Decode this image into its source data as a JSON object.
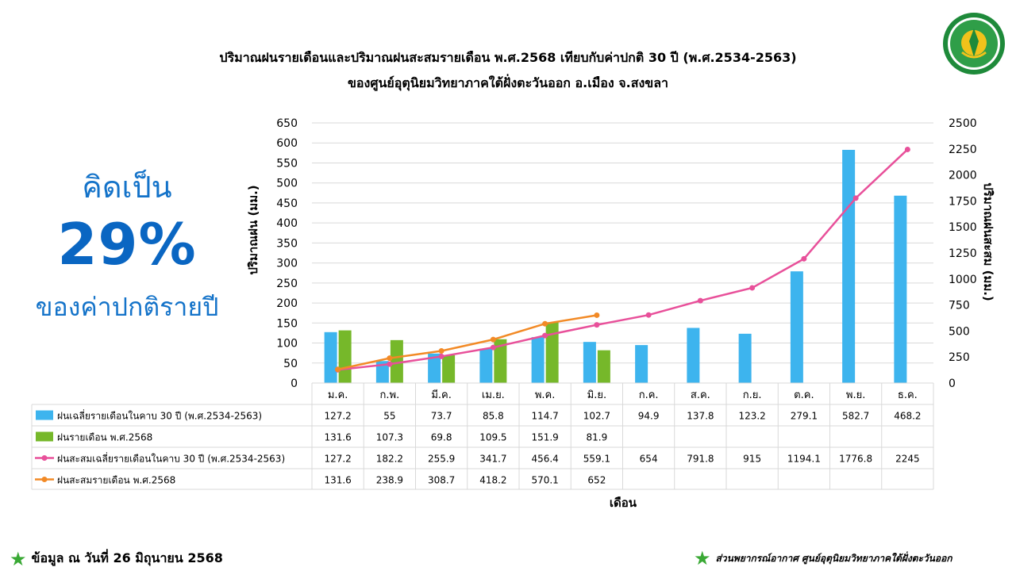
{
  "header": {
    "line1": "ปริมาณฝนรายเดือนและปริมาณฝนสะสมรายเดือน  พ.ศ.2568  เทียบกับค่าปกติ  30  ปี  (พ.ศ.2534-2563)",
    "line2": "ของศูนย์อุตุนิยมวิทยาภาคใต้ฝั่งตะวันออก  อ.เมือง  จ.สงขลา"
  },
  "summary": {
    "line1": "คิดเป็น",
    "percent": "29%",
    "line2": "ของค่าปกติรายปี"
  },
  "footer": {
    "left": "ข้อมูล ณ วันที่ 26 มิถุนายน 2568",
    "right": "ส่วนพยากรณ์อากาศ ศูนย์อุตุนิยมวิทยาภาคใต้ฝั่งตะวันออก"
  },
  "icons": {
    "logo": "meteorological-department-seal",
    "bullet": "green-star-icon"
  },
  "chart_data": {
    "type": "bar",
    "categories": [
      "ม.ค.",
      "ก.พ.",
      "มี.ค.",
      "เม.ย.",
      "พ.ค.",
      "มิ.ย.",
      "ก.ค.",
      "ส.ค.",
      "ก.ย.",
      "ต.ค.",
      "พ.ย.",
      "ธ.ค."
    ],
    "ylabel": "ปริมาณฝน (มม.)",
    "y2label": "ปริมาณฝนสะสม (มม.)",
    "xlabel": "เดือน",
    "ylim": [
      0,
      650
    ],
    "y2lim": [
      0,
      2500
    ],
    "yticks": [
      0,
      50,
      100,
      150,
      200,
      250,
      300,
      350,
      400,
      450,
      500,
      550,
      600,
      650
    ],
    "y2ticks": [
      0,
      250,
      500,
      750,
      1000,
      1250,
      1500,
      1750,
      2000,
      2250,
      2500
    ],
    "grid": true,
    "series": [
      {
        "name": "ฝนเฉลี่ยรายเดือนในคาบ 30 ปี (พ.ศ.2534-2563)",
        "kind": "bar",
        "axis": "left",
        "color": "#3db4ee",
        "values": [
          127.2,
          55,
          73.7,
          85.8,
          114.7,
          102.7,
          94.9,
          137.8,
          123.2,
          279.1,
          582.7,
          468.2
        ]
      },
      {
        "name": "ฝนรายเดือน พ.ศ.2568",
        "kind": "bar",
        "axis": "left",
        "color": "#76b82a",
        "values": [
          131.6,
          107.3,
          69.8,
          109.5,
          151.9,
          81.9,
          null,
          null,
          null,
          null,
          null,
          null
        ]
      },
      {
        "name": "ฝนสะสมเฉลี่ยรายเดือนในคาบ 30 ปี (พ.ศ.2534-2563)",
        "kind": "line",
        "axis": "right",
        "color": "#e8509a",
        "values": [
          127.2,
          182.2,
          255.9,
          341.7,
          456.4,
          559.1,
          654,
          791.8,
          915,
          1194.1,
          1776.8,
          2245
        ]
      },
      {
        "name": "ฝนสะสมรายเดือน พ.ศ.2568",
        "kind": "line",
        "axis": "right",
        "color": "#f28a26",
        "values": [
          131.6,
          238.9,
          308.7,
          418.2,
          570.1,
          652,
          null,
          null,
          null,
          null,
          null,
          null
        ]
      }
    ]
  }
}
